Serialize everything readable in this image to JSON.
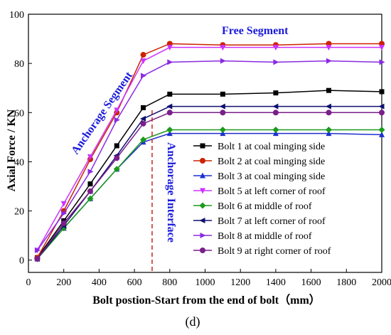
{
  "chart_data": {
    "type": "line",
    "xlabel": "Bolt postion-Start from the end of bolt（mm）",
    "ylabel": "Axial Force / KN",
    "xlim": [
      0,
      2000
    ],
    "ylim": [
      -5,
      100
    ],
    "xticks": [
      0,
      200,
      400,
      600,
      800,
      1000,
      1200,
      1400,
      1600,
      1800,
      2000
    ],
    "yticks": [
      0,
      20,
      40,
      60,
      80,
      100
    ],
    "grid": false,
    "legend_position": "bottom-right",
    "panel_label": "(d)",
    "annotations": {
      "free_segment": "Free Segment",
      "anchorage_segment": "Anchorage Segment",
      "anchorage_interface": "Anchorage Interface",
      "interface_x": 700
    },
    "series": [
      {
        "name": "Bolt 1 at coal minging side",
        "color": "#000000",
        "marker": "square",
        "x": [
          50,
          200,
          350,
          500,
          650,
          800,
          1100,
          1400,
          1700,
          2000
        ],
        "y": [
          1,
          16,
          31,
          46.5,
          62,
          67.5,
          67.5,
          68,
          69,
          68.5
        ]
      },
      {
        "name": "Bolt 2 at coal minging side",
        "color": "#cc2200",
        "marker": "circle",
        "x": [
          50,
          200,
          350,
          500,
          650,
          800,
          1100,
          1400,
          1700,
          2000
        ],
        "y": [
          1,
          20,
          41,
          60,
          83.5,
          88,
          87.5,
          87.5,
          88,
          88
        ]
      },
      {
        "name": "Bolt 3 at coal minging side",
        "color": "#1f2fd0",
        "marker": "triangle-up",
        "x": [
          50,
          200,
          350,
          500,
          650,
          800,
          1100,
          1400,
          1700,
          2000
        ],
        "y": [
          0.5,
          13,
          25,
          37,
          48,
          51.5,
          51.5,
          51.5,
          51.5,
          51
        ]
      },
      {
        "name": "Bolt 5 at left corner of roof",
        "color": "#cc33ff",
        "marker": "triangle-down",
        "x": [
          50,
          200,
          350,
          500,
          650,
          800,
          1100,
          1400,
          1700,
          2000
        ],
        "y": [
          4,
          23,
          42,
          61,
          81,
          86.5,
          86.5,
          86.5,
          86.5,
          86.5
        ]
      },
      {
        "name": "Bolt 6 at middle of roof",
        "color": "#1c9a1c",
        "marker": "diamond",
        "x": [
          50,
          200,
          350,
          500,
          650,
          800,
          1100,
          1400,
          1700,
          2000
        ],
        "y": [
          0.5,
          13,
          25,
          37,
          49,
          53,
          53,
          53,
          53,
          53
        ]
      },
      {
        "name": "Bolt 7 at left corner of roof",
        "color": "#101070",
        "marker": "triangle-left",
        "x": [
          50,
          200,
          350,
          500,
          650,
          800,
          1100,
          1400,
          1700,
          2000
        ],
        "y": [
          0.5,
          14,
          28,
          42.5,
          57.5,
          62.5,
          62.5,
          62.5,
          62.5,
          62.5
        ]
      },
      {
        "name": "Bolt 8 at middle of roof",
        "color": "#8a2be2",
        "marker": "triangle-right",
        "x": [
          50,
          200,
          350,
          500,
          650,
          800,
          1100,
          1400,
          1700,
          2000
        ],
        "y": [
          4,
          19,
          36,
          57,
          75,
          80.5,
          81,
          80.5,
          81,
          80.5
        ]
      },
      {
        "name": "Bolt 9 at right corner of roof",
        "color": "#7a1f8a",
        "marker": "circle",
        "x": [
          50,
          200,
          350,
          500,
          650,
          800,
          1100,
          1400,
          1700,
          2000
        ],
        "y": [
          0.5,
          15,
          28,
          41.5,
          55.5,
          60,
          60,
          60,
          60,
          60
        ]
      }
    ]
  }
}
